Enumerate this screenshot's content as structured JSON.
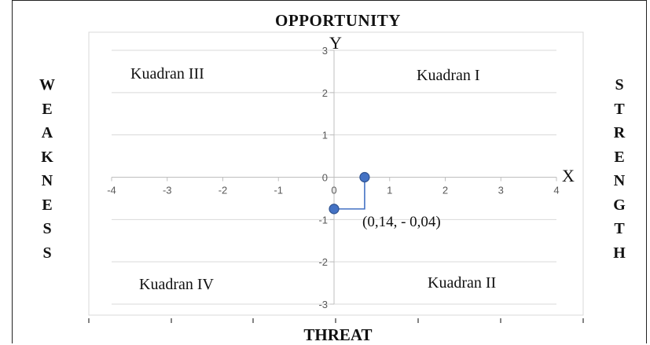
{
  "chart_data": {
    "type": "scatter",
    "title_top": "OPPORTUNITY",
    "title_bottom": "THREAT",
    "left_label": "WEAKNESS",
    "right_label": "STRENGTH",
    "xlabel": "X",
    "ylabel": "Y",
    "xlim": [
      -4,
      4
    ],
    "ylim": [
      -3,
      3
    ],
    "x_ticks": [
      "-4",
      "-3",
      "-2",
      "-1",
      "0",
      "1",
      "2",
      "3",
      "4"
    ],
    "y_ticks": [
      "-3",
      "-2",
      "-1",
      "0",
      "1",
      "2",
      "3"
    ],
    "grid": true,
    "quadrants": {
      "q1": "Kuadran I",
      "q2": "Kuadran II",
      "q3": "Kuadran III",
      "q4": "Kuadran IV"
    },
    "points": [
      {
        "x": 0.55,
        "y": 0
      },
      {
        "x": 0,
        "y": -0.75
      }
    ],
    "annotation": "(0,14, - 0,04)",
    "colors": {
      "point": "#4472C4",
      "point_edge": "#2F528F",
      "grid": "#D9D9D9",
      "axis": "#BFBFBF"
    }
  }
}
